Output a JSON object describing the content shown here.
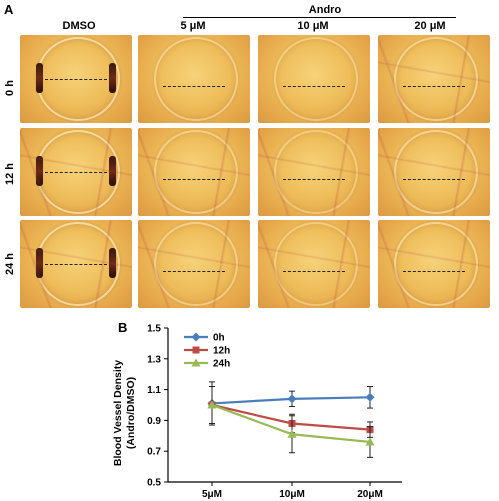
{
  "panel_a": {
    "letter": "A",
    "group_label": "Andro",
    "columns": [
      "DMSO",
      "5 μM",
      "10 μM",
      "20 μM"
    ],
    "rows": [
      "0 h",
      "12 h",
      "24 h"
    ]
  },
  "panel_b": {
    "letter": "B"
  },
  "chart_data": {
    "type": "line",
    "title": "",
    "xlabel": "",
    "ylabel": "Blood Vessel Density\n(Andro/DMSO)",
    "ylabel_line1": "Blood Vessel Density",
    "ylabel_line2": "(Andro/DMSO)",
    "categories": [
      "5μM",
      "10μM",
      "20μM"
    ],
    "ylim": [
      0.5,
      1.5
    ],
    "yticks": [
      "0.5",
      "0.7",
      "0.9",
      "1.1",
      "1.3",
      "1.5"
    ],
    "legend_position": "top-left",
    "series": [
      {
        "name": "0h",
        "color": "#4a7ebb",
        "marker": "diamond",
        "values": [
          1.01,
          1.04,
          1.05
        ],
        "errors": [
          0.14,
          0.05,
          0.07
        ]
      },
      {
        "name": "12h",
        "color": "#be4b48",
        "marker": "square",
        "values": [
          1.0,
          0.88,
          0.84
        ],
        "errors": [
          0.12,
          0.06,
          0.05
        ]
      },
      {
        "name": "24h",
        "color": "#98b954",
        "marker": "triangle",
        "values": [
          1.0,
          0.81,
          0.76
        ],
        "errors": [
          0.12,
          0.12,
          0.1
        ]
      }
    ]
  }
}
